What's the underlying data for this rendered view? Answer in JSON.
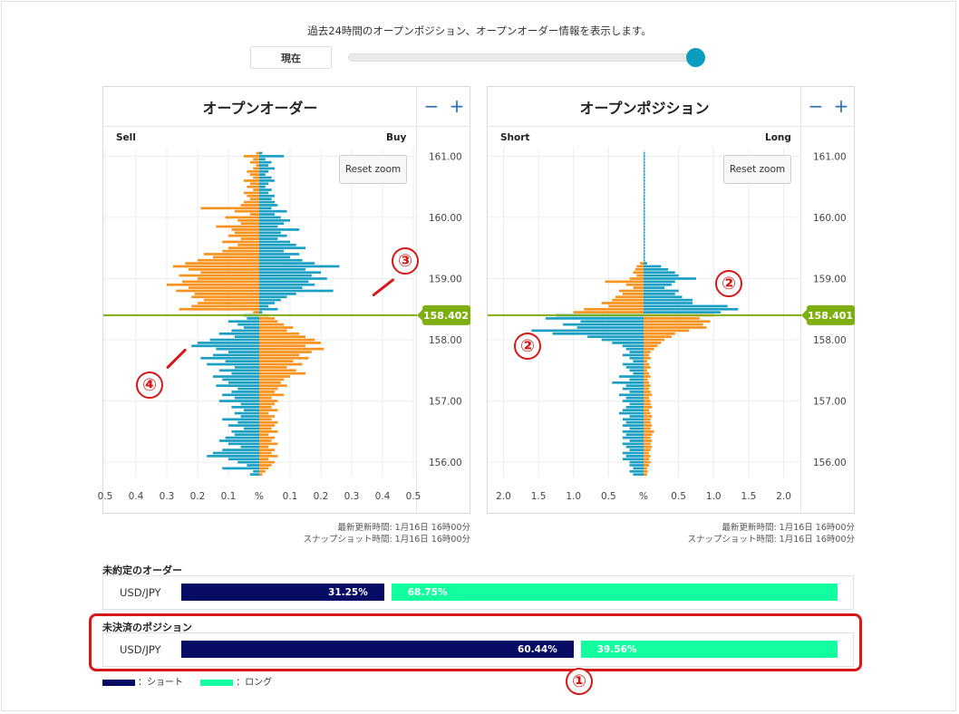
{
  "header": {
    "caption": "過去24時間のオープンポジション、オープンオーダー情報を表示します。",
    "now_button": "現在"
  },
  "orders_panel": {
    "title": "オープンオーダー",
    "left_label": "Sell",
    "right_label": "Buy",
    "reset_zoom": "Reset zoom",
    "zoom_out": "−",
    "zoom_in": "+",
    "price_tag": "158.402",
    "updated": "最新更新時間: 1月16日 16時00分",
    "snapshot": "スナップショット時間: 1月16日 16時00分"
  },
  "positions_panel": {
    "title": "オープンポジション",
    "left_label": "Short",
    "right_label": "Long",
    "reset_zoom": "Reset zoom",
    "zoom_out": "−",
    "zoom_in": "+",
    "price_tag": "158.401",
    "updated": "最新更新時間: 1月16日 16時00分",
    "snapshot": "スナップショット時間: 1月16日 16時00分"
  },
  "pending_orders": {
    "title": "未約定のオーダー",
    "pair": "USD/JPY",
    "short_pct": "31.25%",
    "long_pct": "68.75%",
    "short_value": 31.25
  },
  "open_positions": {
    "title": "未決済のポジション",
    "pair": "USD/JPY",
    "short_pct": "60.44%",
    "long_pct": "39.56%",
    "short_value": 60.44
  },
  "legend": {
    "short": "：ショート",
    "long": "：ロング"
  },
  "annotations": [
    "①",
    "②",
    "②",
    "③",
    "④"
  ],
  "colors": {
    "orange": "#f7931e",
    "blue": "#1ba0c4",
    "price_line": "#7fae10",
    "short": "#070b63",
    "long": "#12ffa0",
    "highlight": "#d61818"
  },
  "chart_data": [
    {
      "type": "bar",
      "orientation": "horizontal",
      "title": "オープンオーダー",
      "y_axis": {
        "ticks": [
          "161.00",
          "160.00",
          "159.00",
          "158.00",
          "157.00",
          "156.00"
        ],
        "range": [
          155.75,
          161.05
        ]
      },
      "x_axis": {
        "ticks": [
          "0.5",
          "0.4",
          "0.3",
          "0.2",
          "0.1",
          "%",
          "0.1",
          "0.2",
          "0.3",
          "0.4",
          "0.5"
        ],
        "range": [
          -0.5,
          0.5
        ]
      },
      "current_price": 158.402,
      "series": [
        {
          "name": "Sell",
          "side": "left",
          "price_start": 161.05,
          "step": 0.05,
          "above_price_color": "orange",
          "below_price_color": "blue",
          "values": [
            0.01,
            0.05,
            0.02,
            0.03,
            0.01,
            0.02,
            0.04,
            0.03,
            0.02,
            0.05,
            0.03,
            0.04,
            0.02,
            0.05,
            0.04,
            0.03,
            0.05,
            0.06,
            0.19,
            0.08,
            0.03,
            0.11,
            0.07,
            0.06,
            0.14,
            0.09,
            0.08,
            0.1,
            0.06,
            0.12,
            0.07,
            0.1,
            0.12,
            0.18,
            0.15,
            0.2,
            0.24,
            0.28,
            0.23,
            0.19,
            0.26,
            0.2,
            0.25,
            0.3,
            0.23,
            0.27,
            0.21,
            0.22,
            0.18,
            0.2,
            0.22,
            0.26,
            0.02,
            0.05,
            0.04,
            0.1,
            0.07,
            0.05,
            0.09,
            0.13,
            0.08,
            0.16,
            0.2,
            0.22,
            0.14,
            0.1,
            0.15,
            0.19,
            0.11,
            0.17,
            0.08,
            0.13,
            0.09,
            0.15,
            0.12,
            0.1,
            0.14,
            0.07,
            0.09,
            0.12,
            0.08,
            0.13,
            0.06,
            0.09,
            0.05,
            0.08,
            0.06,
            0.12,
            0.07,
            0.1,
            0.05,
            0.09,
            0.08,
            0.11,
            0.13,
            0.1,
            0.06,
            0.12,
            0.15,
            0.17,
            0.1,
            0.07,
            0.04,
            0.12,
            0.02,
            0.03
          ]
        },
        {
          "name": "Buy",
          "side": "right",
          "price_start": 161.05,
          "step": 0.05,
          "above_price_color": "blue",
          "below_price_color": "orange",
          "values": [
            0.01,
            0.08,
            0.02,
            0.04,
            0.03,
            0.05,
            0.03,
            0.02,
            0.04,
            0.05,
            0.03,
            0.02,
            0.04,
            0.03,
            0.05,
            0.04,
            0.05,
            0.06,
            0.04,
            0.09,
            0.05,
            0.07,
            0.1,
            0.08,
            0.06,
            0.13,
            0.07,
            0.09,
            0.06,
            0.1,
            0.12,
            0.15,
            0.08,
            0.13,
            0.1,
            0.14,
            0.18,
            0.26,
            0.15,
            0.2,
            0.17,
            0.22,
            0.16,
            0.18,
            0.14,
            0.24,
            0.12,
            0.09,
            0.07,
            0.05,
            0.03,
            0.06,
            0.01,
            0.03,
            0.05,
            0.06,
            0.08,
            0.11,
            0.09,
            0.13,
            0.15,
            0.18,
            0.2,
            0.15,
            0.21,
            0.17,
            0.13,
            0.16,
            0.11,
            0.14,
            0.09,
            0.12,
            0.15,
            0.1,
            0.08,
            0.07,
            0.09,
            0.06,
            0.05,
            0.08,
            0.04,
            0.06,
            0.05,
            0.04,
            0.06,
            0.03,
            0.05,
            0.04,
            0.06,
            0.05,
            0.04,
            0.06,
            0.03,
            0.05,
            0.04,
            0.06,
            0.03,
            0.05,
            0.04,
            0.06,
            0.03,
            0.05,
            0.04,
            0.03,
            0.02,
            0.01
          ]
        }
      ]
    },
    {
      "type": "bar",
      "orientation": "horizontal",
      "title": "オープンポジション",
      "y_axis": {
        "ticks": [
          "161.00",
          "160.00",
          "159.00",
          "158.00",
          "157.00",
          "156.00"
        ],
        "range": [
          155.75,
          161.05
        ]
      },
      "x_axis": {
        "ticks": [
          "2.0",
          "1.5",
          "1.0",
          "0.5",
          "%",
          "0.5",
          "1.0",
          "1.5",
          "2.0"
        ],
        "range": [
          -2.2,
          2.2
        ]
      },
      "current_price": 158.401,
      "series": [
        {
          "name": "Short",
          "side": "left",
          "price_start": 161.05,
          "step": 0.05,
          "above_price_color": "orange",
          "below_price_color": "blue",
          "values": [
            0,
            0,
            0,
            0,
            0,
            0,
            0,
            0,
            0,
            0,
            0,
            0,
            0,
            0,
            0,
            0,
            0,
            0,
            0,
            0,
            0,
            0,
            0,
            0,
            0,
            0,
            0,
            0,
            0,
            0,
            0,
            0,
            0,
            0,
            0,
            0,
            0.05,
            0.1,
            0.12,
            0.15,
            0.1,
            0.2,
            0.55,
            0.25,
            0.15,
            0.35,
            0.3,
            0.4,
            0.45,
            0.6,
            0.5,
            0.85,
            1.0,
            1.25,
            1.4,
            0.9,
            1.15,
            0.95,
            1.6,
            1.3,
            0.8,
            0.6,
            0.45,
            0.3,
            0.25,
            0.2,
            0.3,
            0.2,
            0.15,
            0.3,
            0.25,
            0.2,
            0.15,
            0.35,
            0.2,
            0.45,
            0.25,
            0.3,
            0.2,
            0.35,
            0.25,
            0.3,
            0.2,
            0.25,
            0.3,
            0.35,
            0.2,
            0.3,
            0.25,
            0.3,
            0.2,
            0.3,
            0.25,
            0.3,
            0.2,
            0.3,
            0.25,
            0.2,
            0.3,
            0.25,
            0.3,
            0.2,
            0.2,
            0.15,
            0.2,
            0.15
          ]
        },
        {
          "name": "Long",
          "side": "right",
          "price_start": 161.05,
          "step": 0.05,
          "above_price_color": "blue",
          "below_price_color": "orange",
          "values": [
            0.02,
            0.02,
            0.02,
            0.02,
            0.02,
            0.02,
            0.02,
            0.02,
            0.02,
            0.02,
            0.02,
            0.02,
            0.02,
            0.02,
            0.02,
            0.02,
            0.02,
            0.02,
            0.02,
            0.02,
            0.02,
            0.02,
            0.02,
            0.02,
            0.02,
            0.02,
            0.02,
            0.02,
            0.02,
            0.02,
            0.02,
            0.02,
            0.02,
            0.02,
            0.02,
            0.02,
            0.05,
            0.25,
            0.35,
            0.45,
            0.5,
            0.75,
            0.45,
            0.4,
            0.3,
            0.5,
            0.45,
            0.55,
            0.7,
            0.7,
            1.2,
            1.35,
            1.1,
            1.0,
            0.8,
            0.95,
            0.85,
            0.9,
            0.65,
            0.45,
            0.4,
            0.3,
            0.25,
            0.2,
            0.15,
            0.1,
            0.08,
            0.1,
            0.05,
            0.08,
            0.1,
            0.05,
            0.08,
            0.1,
            0.06,
            0.08,
            0.1,
            0.08,
            0.1,
            0.12,
            0.08,
            0.1,
            0.1,
            0.12,
            0.08,
            0.1,
            0.12,
            0.1,
            0.1,
            0.12,
            0.1,
            0.15,
            0.12,
            0.1,
            0.12,
            0.1,
            0.12,
            0.1,
            0.08,
            0.1,
            0.08,
            0.1,
            0.08,
            0.05,
            0.06,
            0.05
          ]
        }
      ]
    }
  ]
}
